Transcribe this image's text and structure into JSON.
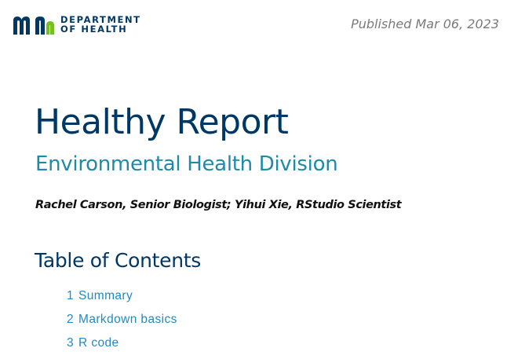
{
  "header": {
    "logo_line1": "DEPARTMENT",
    "logo_line2": "OF HEALTH",
    "published": "Published Mar 06, 2023"
  },
  "colors": {
    "navy": "#003865",
    "teal": "#1f8aa8",
    "green": "#78be21",
    "link": "#1f8ac2"
  },
  "document": {
    "title": "Healthy Report",
    "subtitle": "Environmental Health Division",
    "authors": "Rachel Carson, Senior Biologist; Yihui Xie, RStudio Scientist"
  },
  "toc": {
    "heading": "Table of Contents",
    "items": [
      {
        "num": "1",
        "label": "Summary"
      },
      {
        "num": "2",
        "label": "Markdown basics"
      },
      {
        "num": "3",
        "label": "R code"
      }
    ]
  }
}
